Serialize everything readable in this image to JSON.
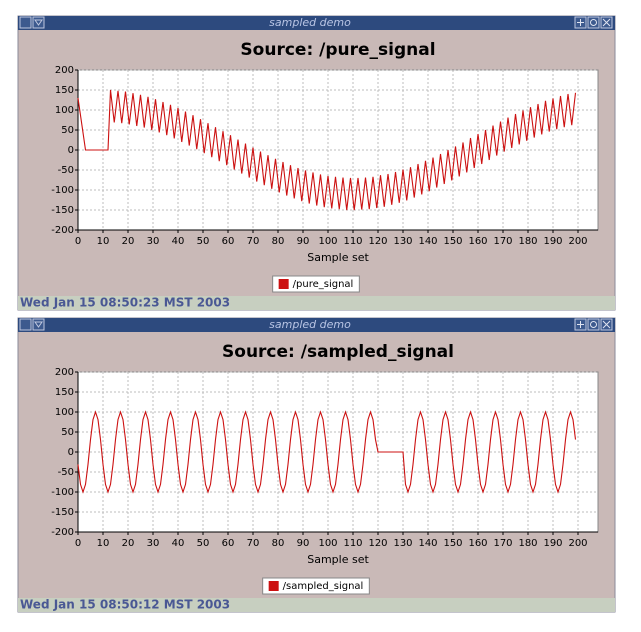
{
  "windows": [
    {
      "title": "sampled demo",
      "status": "Wed Jan 15 08:50:23 MST 2003"
    },
    {
      "title": "sampled demo",
      "status": "Wed Jan 15 08:50:12 MST 2003"
    }
  ],
  "chart_data": [
    {
      "type": "line",
      "title": "Source: /pure_signal",
      "x_label": "Sample set",
      "xlim": [
        0,
        208
      ],
      "ylim": [
        -200,
        200
      ],
      "xticks": [
        0,
        10,
        20,
        30,
        40,
        50,
        60,
        70,
        80,
        90,
        100,
        110,
        120,
        130,
        140,
        150,
        160,
        170,
        180,
        190,
        200
      ],
      "yticks": [
        200,
        150,
        100,
        50,
        0,
        -50,
        -100,
        -150,
        -200
      ],
      "grid": true,
      "legend": "bottom",
      "x": [
        0,
        3,
        12,
        13,
        14.5,
        16,
        17.5,
        19,
        20.5,
        22,
        23.5,
        25,
        26.5,
        28,
        29.5,
        31,
        32.5,
        34,
        35.5,
        37,
        38.5,
        40,
        41.5,
        43,
        44.5,
        46,
        47.5,
        49,
        50.5,
        52,
        53.5,
        55,
        56.5,
        58,
        59.5,
        61,
        62.5,
        64,
        65.5,
        67,
        68.5,
        70,
        71.5,
        73,
        74.5,
        76,
        77.5,
        79,
        80.5,
        82,
        83.5,
        85,
        86.5,
        88,
        89.5,
        91,
        92.5,
        94,
        95.5,
        97,
        98.5,
        100,
        101.5,
        103,
        104.5,
        106,
        107.5,
        109,
        110.5,
        112,
        113.5,
        115,
        116.5,
        118,
        119.5,
        121,
        122.5,
        124,
        125.5,
        127,
        128.5,
        130,
        131.5,
        133,
        134.5,
        136,
        137.5,
        139,
        140.5,
        142,
        143.5,
        145,
        146.5,
        148,
        149.5,
        151,
        152.5,
        154,
        155.5,
        157,
        158.5,
        160,
        161.5,
        163,
        164.5,
        166,
        167.5,
        169,
        170.5,
        172,
        173.5,
        175,
        176.5,
        178,
        179.5,
        181,
        182.5,
        184,
        185.5,
        187,
        188.5,
        190,
        191.5,
        193,
        194.5,
        196,
        197.5,
        199
      ],
      "series": [
        {
          "name": "/pure_signal",
          "color": "#cc1111",
          "values": [
            130,
            0,
            0,
            150,
            69,
            148,
            67,
            146,
            64,
            142,
            60,
            138,
            56,
            133,
            50,
            127,
            44,
            120,
            37,
            113,
            29,
            105,
            20,
            96,
            11,
            87,
            2,
            77,
            -8,
            67,
            -18,
            57,
            -28,
            47,
            -38,
            37,
            -49,
            26,
            -59,
            16,
            -69,
            6,
            -79,
            -4,
            -88,
            -13,
            -97,
            -22,
            -106,
            -30,
            -114,
            -38,
            -121,
            -45,
            -128,
            -51,
            -134,
            -56,
            -139,
            -61,
            -143,
            -65,
            -146,
            -67,
            -148,
            -69,
            -150,
            -70,
            -150,
            -70,
            -149,
            -69,
            -148,
            -67,
            -145,
            -63,
            -142,
            -60,
            -137,
            -55,
            -132,
            -49,
            -126,
            -43,
            -119,
            -35,
            -111,
            -27,
            -103,
            -19,
            -94,
            -10,
            -85,
            0,
            -76,
            9,
            -66,
            19,
            -56,
            30,
            -45,
            40,
            -35,
            50,
            -25,
            61,
            -14,
            71,
            -4,
            81,
            5,
            90,
            14,
            99,
            23,
            107,
            31,
            115,
            39,
            123,
            46,
            129,
            52,
            135,
            57,
            140,
            62,
            143
          ]
        }
      ]
    },
    {
      "type": "line",
      "title": "Source: /sampled_signal",
      "x_label": "Sample set",
      "xlim": [
        0,
        208
      ],
      "ylim": [
        -200,
        200
      ],
      "xticks": [
        0,
        10,
        20,
        30,
        40,
        50,
        60,
        70,
        80,
        90,
        100,
        110,
        120,
        130,
        140,
        150,
        160,
        170,
        180,
        190,
        200
      ],
      "yticks": [
        200,
        150,
        100,
        50,
        0,
        -50,
        -100,
        -150,
        -200
      ],
      "grid": true,
      "legend": "bottom",
      "x": [
        0,
        1,
        2,
        3,
        4,
        5,
        6,
        7,
        8,
        9,
        10,
        11,
        12,
        13,
        14,
        15,
        16,
        17,
        18,
        19,
        20,
        21,
        22,
        23,
        24,
        25,
        26,
        27,
        28,
        29,
        30,
        31,
        32,
        33,
        34,
        35,
        36,
        37,
        38,
        39,
        40,
        41,
        42,
        43,
        44,
        45,
        46,
        47,
        48,
        49,
        50,
        51,
        52,
        53,
        54,
        55,
        56,
        57,
        58,
        59,
        60,
        61,
        62,
        63,
        64,
        65,
        66,
        67,
        68,
        69,
        70,
        71,
        72,
        73,
        74,
        75,
        76,
        77,
        78,
        79,
        80,
        81,
        82,
        83,
        84,
        85,
        86,
        87,
        88,
        89,
        90,
        91,
        92,
        93,
        94,
        95,
        96,
        97,
        98,
        99,
        100,
        101,
        102,
        103,
        104,
        105,
        106,
        107,
        108,
        109,
        110,
        111,
        112,
        113,
        114,
        115,
        116,
        117,
        118,
        119,
        120,
        121,
        122,
        123,
        124,
        125,
        126,
        127,
        128,
        129,
        130,
        131,
        132,
        133,
        134,
        135,
        136,
        137,
        138,
        139,
        140,
        141,
        142,
        143,
        144,
        145,
        146,
        147,
        148,
        149,
        150,
        151,
        152,
        153,
        154,
        155,
        156,
        157,
        158,
        159,
        160,
        161,
        162,
        163,
        164,
        165,
        166,
        167,
        168,
        169,
        170,
        171,
        172,
        173,
        174,
        175,
        176,
        177,
        178,
        179,
        180,
        181,
        182,
        183,
        184,
        185,
        186,
        187,
        188,
        189,
        190,
        191,
        192,
        193,
        194,
        195,
        196,
        197,
        198,
        199
      ],
      "series": [
        {
          "name": "/sampled_signal",
          "color": "#cc1111",
          "values": [
            -31,
            -81,
            -100,
            -81,
            -31,
            31,
            81,
            100,
            81,
            31,
            -31,
            -81,
            -100,
            -81,
            -31,
            31,
            81,
            100,
            81,
            31,
            -31,
            -81,
            -100,
            -81,
            -31,
            31,
            81,
            100,
            81,
            31,
            -31,
            -81,
            -100,
            -81,
            -31,
            31,
            81,
            100,
            81,
            31,
            -31,
            -81,
            -100,
            -81,
            -31,
            31,
            81,
            100,
            81,
            31,
            -31,
            -81,
            -100,
            -81,
            -31,
            31,
            81,
            100,
            81,
            31,
            -31,
            -81,
            -100,
            -81,
            -31,
            31,
            81,
            100,
            81,
            31,
            -31,
            -81,
            -100,
            -81,
            -31,
            31,
            81,
            100,
            81,
            31,
            -31,
            -81,
            -100,
            -81,
            -31,
            31,
            81,
            100,
            81,
            31,
            -31,
            -81,
            -100,
            -81,
            -31,
            31,
            81,
            100,
            81,
            31,
            -31,
            -81,
            -100,
            -81,
            -31,
            31,
            81,
            100,
            81,
            31,
            -31,
            -81,
            -100,
            -81,
            -31,
            31,
            81,
            100,
            81,
            31,
            0,
            0,
            0,
            0,
            0,
            0,
            0,
            0,
            0,
            0,
            0,
            -81,
            -100,
            -81,
            -31,
            31,
            81,
            100,
            81,
            31,
            -31,
            -81,
            -100,
            -81,
            -31,
            31,
            81,
            100,
            81,
            31,
            -31,
            -81,
            -100,
            -81,
            -31,
            31,
            81,
            100,
            81,
            31,
            -31,
            -81,
            -100,
            -81,
            -31,
            31,
            81,
            100,
            81,
            31,
            -31,
            -81,
            -100,
            -81,
            -31,
            31,
            81,
            100,
            81,
            31,
            -31,
            -81,
            -100,
            -81,
            -31,
            31,
            81,
            100,
            81,
            31,
            -31,
            -81,
            -100,
            -81,
            -31,
            31,
            81,
            100,
            81,
            31
          ]
        }
      ]
    }
  ]
}
